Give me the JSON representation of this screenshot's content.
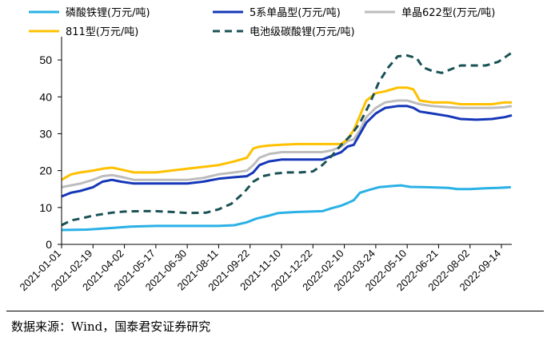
{
  "chart_data": {
    "type": "line",
    "x_tick_labels": [
      "2021-01-01",
      "2021-02-19",
      "2021-04-02",
      "2021-05-17",
      "2021-06-30",
      "2021-08-11",
      "2021-09-22",
      "2021-11-10",
      "2021-12-22",
      "2022-02-10",
      "2022-03-24",
      "2022-05-10",
      "2022-06-21",
      "2022-08-02",
      "2022-09-14"
    ],
    "ylim": [
      0,
      55
    ],
    "y_ticks": [
      0,
      10,
      20,
      30,
      40,
      50
    ],
    "xlim": [
      0,
      14.33
    ],
    "legend_position": "top",
    "series": [
      {
        "name": "磷酸铁锂(万元/吨)",
        "color": "#2ab1e6",
        "dash": "solid",
        "points": [
          [
            0,
            3.9
          ],
          [
            0.8,
            4.0
          ],
          [
            1.5,
            4.4
          ],
          [
            2.2,
            4.8
          ],
          [
            3.0,
            5.0
          ],
          [
            4.0,
            5.0
          ],
          [
            5.0,
            5.0
          ],
          [
            5.5,
            5.2
          ],
          [
            5.9,
            6.0
          ],
          [
            6.2,
            7.0
          ],
          [
            6.6,
            7.8
          ],
          [
            6.9,
            8.5
          ],
          [
            7.5,
            8.8
          ],
          [
            8.3,
            9.0
          ],
          [
            8.6,
            9.8
          ],
          [
            8.9,
            10.5
          ],
          [
            9.1,
            11.2
          ],
          [
            9.3,
            12.0
          ],
          [
            9.5,
            14.0
          ],
          [
            9.8,
            14.8
          ],
          [
            10.1,
            15.5
          ],
          [
            10.5,
            15.8
          ],
          [
            10.8,
            16.0
          ],
          [
            11.1,
            15.6
          ],
          [
            11.6,
            15.5
          ],
          [
            12.3,
            15.3
          ],
          [
            12.6,
            15.0
          ],
          [
            13.0,
            15.0
          ],
          [
            13.5,
            15.2
          ],
          [
            13.9,
            15.3
          ],
          [
            14.3,
            15.5
          ]
        ]
      },
      {
        "name": "5系单晶型(万元/吨)",
        "color": "#1637b8",
        "dash": "solid",
        "points": [
          [
            0,
            13.0
          ],
          [
            0.3,
            14.0
          ],
          [
            0.6,
            14.5
          ],
          [
            1.0,
            15.5
          ],
          [
            1.3,
            17.0
          ],
          [
            1.6,
            17.5
          ],
          [
            1.9,
            17.0
          ],
          [
            2.3,
            16.5
          ],
          [
            3.0,
            16.5
          ],
          [
            4.0,
            16.5
          ],
          [
            4.5,
            17.0
          ],
          [
            5.0,
            17.8
          ],
          [
            5.5,
            18.2
          ],
          [
            5.9,
            18.5
          ],
          [
            6.1,
            19.5
          ],
          [
            6.3,
            21.5
          ],
          [
            6.6,
            22.5
          ],
          [
            7.0,
            23.0
          ],
          [
            7.5,
            23.0
          ],
          [
            8.3,
            23.0
          ],
          [
            8.6,
            24.0
          ],
          [
            8.9,
            25.0
          ],
          [
            9.1,
            26.5
          ],
          [
            9.3,
            27.0
          ],
          [
            9.5,
            30.0
          ],
          [
            9.7,
            33.0
          ],
          [
            10.0,
            35.5
          ],
          [
            10.3,
            37.0
          ],
          [
            10.7,
            37.5
          ],
          [
            11.0,
            37.5
          ],
          [
            11.2,
            37.0
          ],
          [
            11.4,
            36.0
          ],
          [
            11.8,
            35.5
          ],
          [
            12.3,
            34.8
          ],
          [
            12.7,
            34.0
          ],
          [
            13.2,
            33.8
          ],
          [
            13.7,
            34.0
          ],
          [
            14.1,
            34.5
          ],
          [
            14.33,
            35.0
          ]
        ]
      },
      {
        "name": "单晶622型(万元/吨)",
        "color": "#bdbdbd",
        "dash": "solid",
        "points": [
          [
            0,
            15.5
          ],
          [
            0.3,
            16.0
          ],
          [
            0.6,
            16.5
          ],
          [
            1.0,
            17.5
          ],
          [
            1.3,
            18.5
          ],
          [
            1.6,
            18.8
          ],
          [
            1.9,
            18.3
          ],
          [
            2.3,
            17.5
          ],
          [
            3.0,
            17.5
          ],
          [
            4.0,
            17.5
          ],
          [
            4.5,
            18.0
          ],
          [
            5.0,
            19.0
          ],
          [
            5.5,
            19.5
          ],
          [
            5.9,
            20.0
          ],
          [
            6.1,
            21.5
          ],
          [
            6.3,
            23.5
          ],
          [
            6.6,
            24.5
          ],
          [
            7.0,
            25.0
          ],
          [
            7.5,
            25.0
          ],
          [
            8.3,
            25.0
          ],
          [
            8.6,
            25.5
          ],
          [
            8.9,
            26.5
          ],
          [
            9.1,
            28.0
          ],
          [
            9.3,
            28.5
          ],
          [
            9.5,
            31.0
          ],
          [
            9.7,
            34.5
          ],
          [
            10.0,
            37.0
          ],
          [
            10.3,
            38.5
          ],
          [
            10.7,
            39.0
          ],
          [
            11.0,
            39.0
          ],
          [
            11.2,
            38.5
          ],
          [
            11.4,
            38.0
          ],
          [
            11.8,
            37.5
          ],
          [
            12.3,
            37.2
          ],
          [
            12.7,
            37.0
          ],
          [
            13.2,
            37.0
          ],
          [
            13.7,
            37.0
          ],
          [
            14.1,
            37.2
          ],
          [
            14.33,
            37.5
          ]
        ]
      },
      {
        "name": "811型(万元/吨)",
        "color": "#ffc000",
        "dash": "solid",
        "points": [
          [
            0,
            17.5
          ],
          [
            0.3,
            19.0
          ],
          [
            0.6,
            19.5
          ],
          [
            1.0,
            20.0
          ],
          [
            1.3,
            20.5
          ],
          [
            1.6,
            20.8
          ],
          [
            1.9,
            20.3
          ],
          [
            2.3,
            19.5
          ],
          [
            3.0,
            19.5
          ],
          [
            4.0,
            20.5
          ],
          [
            4.5,
            21.0
          ],
          [
            5.0,
            21.5
          ],
          [
            5.5,
            22.5
          ],
          [
            5.9,
            23.5
          ],
          [
            6.1,
            26.0
          ],
          [
            6.3,
            26.5
          ],
          [
            6.6,
            26.8
          ],
          [
            7.0,
            27.0
          ],
          [
            7.5,
            27.2
          ],
          [
            8.3,
            27.2
          ],
          [
            8.6,
            27.2
          ],
          [
            8.9,
            27.2
          ],
          [
            9.1,
            28.5
          ],
          [
            9.3,
            31.0
          ],
          [
            9.5,
            35.0
          ],
          [
            9.7,
            39.0
          ],
          [
            10.0,
            41.0
          ],
          [
            10.3,
            41.5
          ],
          [
            10.7,
            42.5
          ],
          [
            11.0,
            42.5
          ],
          [
            11.2,
            42.0
          ],
          [
            11.4,
            39.0
          ],
          [
            11.8,
            38.5
          ],
          [
            12.3,
            38.5
          ],
          [
            12.7,
            38.0
          ],
          [
            13.2,
            38.0
          ],
          [
            13.7,
            38.0
          ],
          [
            14.1,
            38.5
          ],
          [
            14.33,
            38.5
          ]
        ]
      },
      {
        "name": "电池级碳酸锂(万元/吨)",
        "color": "#1a5256",
        "dash": "dashed",
        "points": [
          [
            0,
            5.2
          ],
          [
            0.3,
            6.5
          ],
          [
            0.6,
            7.0
          ],
          [
            1.0,
            7.8
          ],
          [
            1.3,
            8.2
          ],
          [
            1.6,
            8.6
          ],
          [
            2.0,
            8.9
          ],
          [
            2.5,
            9.0
          ],
          [
            3.0,
            9.0
          ],
          [
            3.5,
            8.8
          ],
          [
            4.0,
            8.5
          ],
          [
            4.6,
            8.6
          ],
          [
            5.0,
            9.5
          ],
          [
            5.4,
            11.0
          ],
          [
            5.8,
            14.0
          ],
          [
            6.1,
            17.0
          ],
          [
            6.4,
            18.5
          ],
          [
            6.8,
            19.2
          ],
          [
            7.2,
            19.5
          ],
          [
            7.6,
            19.5
          ],
          [
            8.0,
            19.8
          ],
          [
            8.3,
            21.5
          ],
          [
            8.6,
            24.0
          ],
          [
            8.9,
            27.0
          ],
          [
            9.2,
            29.5
          ],
          [
            9.5,
            33.0
          ],
          [
            9.8,
            38.0
          ],
          [
            10.1,
            44.0
          ],
          [
            10.4,
            48.0
          ],
          [
            10.7,
            51.0
          ],
          [
            11.0,
            51.2
          ],
          [
            11.3,
            50.5
          ],
          [
            11.5,
            48.0
          ],
          [
            11.8,
            47.0
          ],
          [
            12.1,
            46.5
          ],
          [
            12.4,
            47.5
          ],
          [
            12.7,
            48.5
          ],
          [
            13.0,
            48.5
          ],
          [
            13.5,
            48.5
          ],
          [
            13.9,
            49.5
          ],
          [
            14.33,
            52.0
          ]
        ]
      }
    ]
  },
  "footer": {
    "source": "数据来源：Wind，国泰君安证券研究"
  }
}
